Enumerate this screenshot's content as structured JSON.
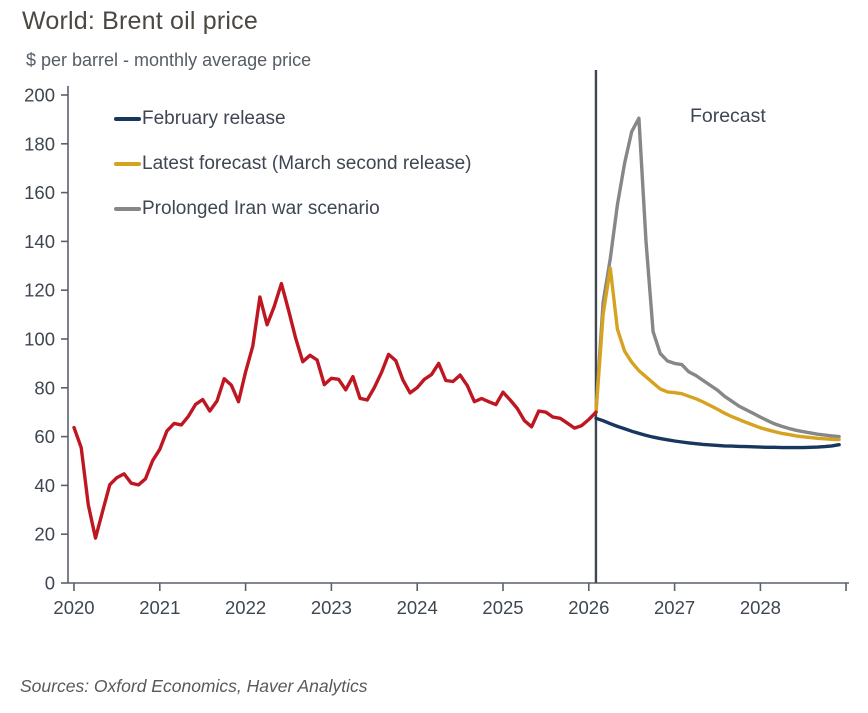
{
  "page": {
    "title": "World: Brent oil price",
    "subtitle": "$ per barrel - monthly average price",
    "source_note": "Sources: Oxford Economics, Haver Analytics"
  },
  "annotations": {
    "forecast_label": "Forecast"
  },
  "legend": {
    "items": [
      {
        "label": "February release",
        "color": "#17375e"
      },
      {
        "label": "Latest forecast (March second release)",
        "color": "#d6a321"
      },
      {
        "label": "Prolonged Iran war scenario",
        "color": "#858789"
      }
    ]
  },
  "chart_data": {
    "type": "line",
    "title": "World: Brent oil price",
    "subtitle": "$ per barrel - monthly average price",
    "ylim": [
      0,
      200
    ],
    "y_ticks": [
      0,
      20,
      40,
      60,
      80,
      100,
      120,
      140,
      160,
      180,
      200
    ],
    "x_tick_years": [
      2020,
      2021,
      2022,
      2023,
      2024,
      2025,
      2026,
      2027,
      2028
    ],
    "x_range_months": [
      "2020-01",
      "2028-12"
    ],
    "grid": false,
    "legend_position": "inside-top-left",
    "forecast_start": "2026-02",
    "forecast_annotation": "Forecast",
    "series": [
      {
        "name": "Brent oil price (actual)",
        "color": "#bf1722",
        "in_legend": false,
        "start": "2020-01",
        "values": [
          63.7,
          55.5,
          32.0,
          18.4,
          29.4,
          40.3,
          43.2,
          44.7,
          40.9,
          40.2,
          42.7,
          50.2,
          54.8,
          62.3,
          65.4,
          64.8,
          68.3,
          73.2,
          75.2,
          70.5,
          74.6,
          83.7,
          81.1,
          74.3,
          86.5,
          97.1,
          117.2,
          105.8,
          113.3,
          122.7,
          111.9,
          100.4,
          90.7,
          93.3,
          91.4,
          81.3,
          83.9,
          83.5,
          79.2,
          84.6,
          75.7,
          75.0,
          80.1,
          86.2,
          93.7,
          91.1,
          83.2,
          77.9,
          80.1,
          83.5,
          85.4,
          90.0,
          83.0,
          82.6,
          85.2,
          80.9,
          74.3,
          75.6,
          74.3,
          73.1,
          78.2,
          75.0,
          71.5,
          66.5,
          64.0,
          70.5,
          70.0,
          68.0,
          67.5,
          65.5,
          63.5,
          64.5,
          67.0,
          70.0
        ]
      },
      {
        "name": "February release",
        "color": "#17375e",
        "in_legend": true,
        "start": "2026-02",
        "values": [
          67.5,
          66.5,
          65.3,
          64.2,
          63.2,
          62.2,
          61.3,
          60.5,
          59.8,
          59.2,
          58.7,
          58.2,
          57.8,
          57.4,
          57.1,
          56.8,
          56.6,
          56.4,
          56.2,
          56.1,
          56.0,
          55.9,
          55.8,
          55.7,
          55.6,
          55.6,
          55.5,
          55.5,
          55.5,
          55.5,
          55.6,
          55.7,
          55.9,
          56.2,
          56.7
        ]
      },
      {
        "name": "Latest forecast (March second release)",
        "color": "#d6a321",
        "in_legend": true,
        "start": "2026-02",
        "values": [
          70.0,
          110.0,
          129.0,
          104.0,
          95.0,
          90.5,
          87.0,
          84.5,
          82.0,
          79.5,
          78.3,
          78.0,
          77.6,
          76.5,
          75.5,
          74.2,
          72.7,
          71.2,
          69.6,
          68.2,
          67.0,
          65.8,
          64.7,
          63.6,
          62.8,
          62.0,
          61.3,
          60.8,
          60.3,
          59.9,
          59.6,
          59.3,
          59.1,
          58.9,
          58.8
        ]
      },
      {
        "name": "Prolonged Iran war scenario",
        "color": "#858789",
        "in_legend": true,
        "start": "2026-02",
        "values": [
          70.0,
          115.0,
          133.0,
          155.0,
          172.0,
          185.0,
          190.5,
          140.0,
          103.0,
          94.0,
          91.0,
          90.0,
          89.5,
          86.5,
          85.0,
          83.0,
          81.0,
          79.0,
          76.5,
          74.5,
          72.5,
          71.0,
          69.5,
          68.0,
          66.5,
          65.2,
          64.2,
          63.3,
          62.6,
          62.0,
          61.5,
          61.0,
          60.6,
          60.3,
          60.0
        ]
      }
    ]
  }
}
